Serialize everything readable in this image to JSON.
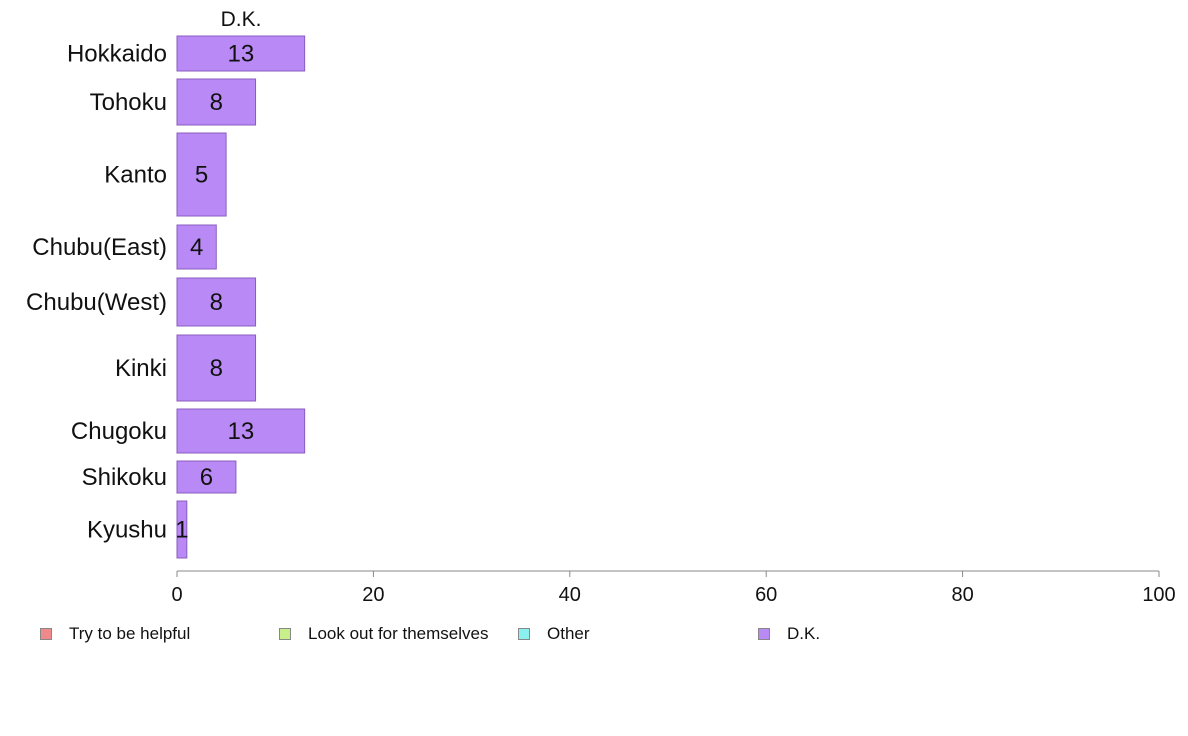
{
  "chart_data": {
    "type": "bar",
    "orientation": "horizontal",
    "stacked": true,
    "title": "",
    "series_header": "D.K.",
    "categories": [
      "Hokkaido",
      "Tohoku",
      "Kanto",
      "Chubu(East)",
      "Chubu(West)",
      "Kinki",
      "Chugoku",
      "Shikoku",
      "Kyushu"
    ],
    "series": [
      {
        "name": "Try to be helpful",
        "color": "#f08a8a",
        "values": [
          0,
          0,
          0,
          0,
          0,
          0,
          0,
          0,
          0
        ]
      },
      {
        "name": "Look out for themselves",
        "color": "#c8f08a",
        "values": [
          0,
          0,
          0,
          0,
          0,
          0,
          0,
          0,
          0
        ]
      },
      {
        "name": "Other",
        "color": "#8af0f0",
        "values": [
          0,
          0,
          0,
          0,
          0,
          0,
          0,
          0,
          0
        ]
      },
      {
        "name": "D.K.",
        "color": "#b98af5",
        "values": [
          13,
          8,
          5,
          4,
          8,
          8,
          13,
          6,
          1
        ],
        "labels": [
          "13",
          "8",
          "5",
          "4",
          "8",
          "8",
          "13",
          "6",
          "1"
        ]
      }
    ],
    "xlim": [
      0,
      100
    ],
    "xticks": [
      0,
      20,
      40,
      60,
      80,
      100
    ],
    "xtick_labels": [
      "0",
      "20",
      "40",
      "60",
      "80",
      "100"
    ],
    "grid": false,
    "legend_position": "bottom"
  }
}
